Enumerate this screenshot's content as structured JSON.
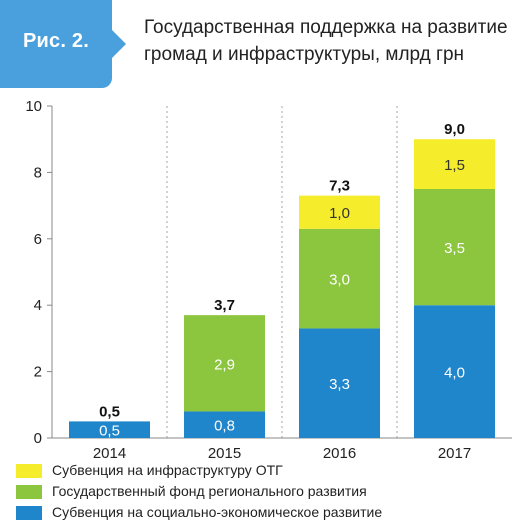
{
  "header": {
    "figure_label": "Рис. 2.",
    "title_line1": "Государственная поддержка на развитие",
    "title_line2": "громад и инфраструктуры, млрд грн"
  },
  "colors": {
    "badge": "#4aa0dc",
    "social_economic": "#1f86cc",
    "regional_fund": "#8cc63f",
    "infrastructure": "#f5ec2c"
  },
  "chart_data": {
    "type": "bar",
    "stacked": true,
    "categories": [
      "2014",
      "2015",
      "2016",
      "2017"
    ],
    "series": [
      {
        "name": "Субвенция на социально-экономическое развитие",
        "values": [
          0.5,
          0.8,
          3.3,
          4.0
        ],
        "labels": [
          "0,5",
          "0,8",
          "3,3",
          "4,0"
        ],
        "color": "#1f86cc",
        "label_color": "#ffffff"
      },
      {
        "name": "Государственный фонд регионального развития",
        "values": [
          0,
          2.9,
          3.0,
          3.5
        ],
        "labels": [
          "",
          "2,9",
          "3,0",
          "3,5"
        ],
        "color": "#8cc63f",
        "label_color": "#ffffff"
      },
      {
        "name": "Субвенция на инфраструктуру ОТГ",
        "values": [
          0,
          0,
          1.0,
          1.5
        ],
        "labels": [
          "",
          "",
          "1,0",
          "1,5"
        ],
        "color": "#f5ec2c",
        "label_color": "#333333"
      }
    ],
    "totals": [
      0.5,
      3.7,
      7.3,
      9.0
    ],
    "total_labels": [
      "0,5",
      "3,7",
      "7,3",
      "9,0"
    ],
    "ylim": [
      0,
      10
    ],
    "yticks": [
      0,
      2,
      4,
      6,
      8,
      10
    ],
    "ytick_labels": [
      "0",
      "2",
      "4",
      "6",
      "8",
      "10"
    ],
    "grid": "vertical dotted",
    "legend_position": "bottom",
    "legend_order": [
      2,
      1,
      0
    ]
  }
}
